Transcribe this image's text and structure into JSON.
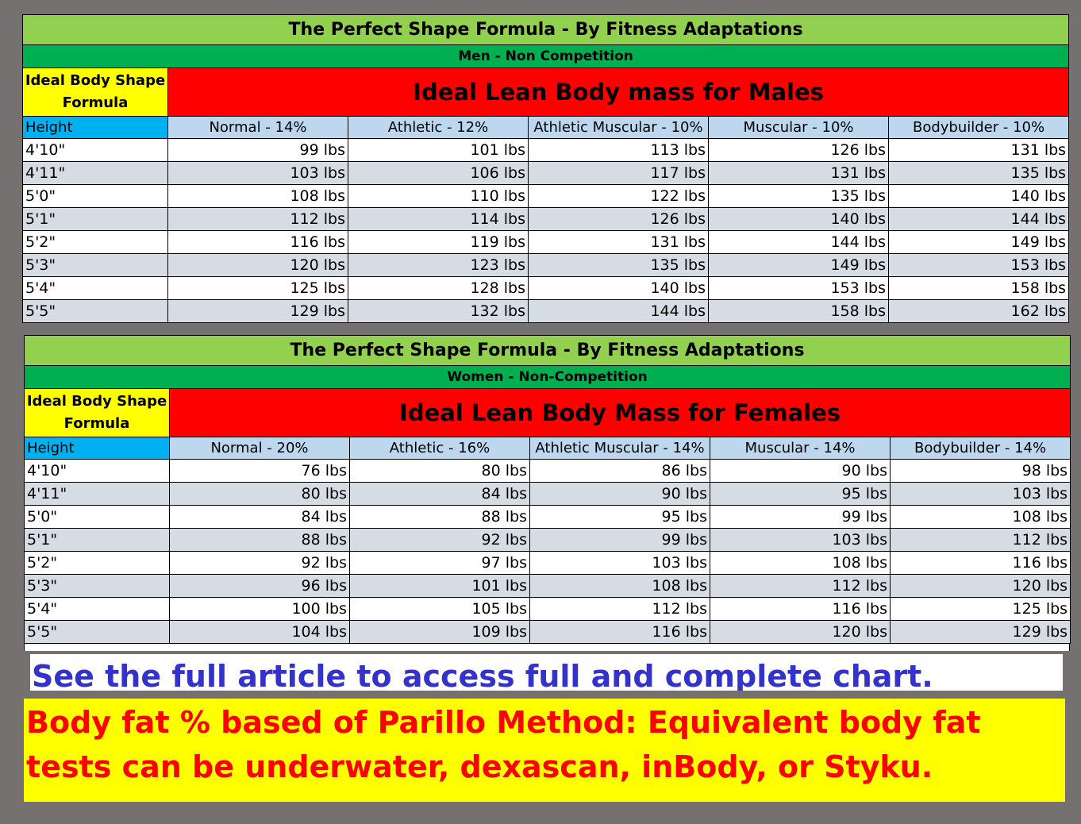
{
  "men": {
    "title": "The Perfect Shape Formula - By Fitness Adaptations",
    "subtitle": "Men - Non Competition",
    "formula_label": "Ideal Body Shape Formula",
    "heading": "Ideal Lean Body mass for Males",
    "columns": [
      "Height",
      "Normal - 14%",
      "Athletic - 12%",
      "Athletic Muscular - 10%",
      "Muscular  - 10%",
      "Bodybuilder - 10%"
    ],
    "rows": [
      [
        "4'10\"",
        "99 lbs",
        "101 lbs",
        "113 lbs",
        "126 lbs",
        "131 lbs"
      ],
      [
        "4'11\"",
        "103 lbs",
        "106 lbs",
        "117 lbs",
        "131 lbs",
        "135 lbs"
      ],
      [
        "5'0\"",
        "108 lbs",
        "110 lbs",
        "122 lbs",
        "135 lbs",
        "140 lbs"
      ],
      [
        "5'1\"",
        "112 lbs",
        "114 lbs",
        "126 lbs",
        "140 lbs",
        "144 lbs"
      ],
      [
        "5'2\"",
        "116 lbs",
        "119 lbs",
        "131 lbs",
        "144 lbs",
        "149 lbs"
      ],
      [
        "5'3\"",
        "120 lbs",
        "123 lbs",
        "135 lbs",
        "149 lbs",
        "153 lbs"
      ],
      [
        "5'4\"",
        "125 lbs",
        "128 lbs",
        "140 lbs",
        "153 lbs",
        "158 lbs"
      ],
      [
        "5'5\"",
        "129 lbs",
        "132 lbs",
        "144 lbs",
        "158 lbs",
        "162 lbs"
      ]
    ]
  },
  "women": {
    "title": "The Perfect Shape Formula - By Fitness Adaptations",
    "subtitle": "Women - Non-Competition",
    "formula_label": "Ideal Body Shape Formula",
    "heading": "Ideal Lean Body Mass for Females",
    "columns": [
      "Height",
      "Normal - 20%",
      "Athletic - 16%",
      "Athletic Muscular - 14%",
      "Muscular  - 14%",
      "Bodybuilder - 14%"
    ],
    "rows": [
      [
        "4'10\"",
        "76 lbs",
        "80 lbs",
        "86 lbs",
        "90 lbs",
        "98 lbs"
      ],
      [
        "4'11\"",
        "80 lbs",
        "84 lbs",
        "90 lbs",
        "95 lbs",
        "103 lbs"
      ],
      [
        "5'0\"",
        "84 lbs",
        "88 lbs",
        "95 lbs",
        "99 lbs",
        "108 lbs"
      ],
      [
        "5'1\"",
        "88 lbs",
        "92 lbs",
        "99 lbs",
        "103 lbs",
        "112 lbs"
      ],
      [
        "5'2\"",
        "92 lbs",
        "97 lbs",
        "103 lbs",
        "108 lbs",
        "116 lbs"
      ],
      [
        "5'3\"",
        "96 lbs",
        "101 lbs",
        "108 lbs",
        "112 lbs",
        "120 lbs"
      ],
      [
        "5'4\"",
        "100 lbs",
        "105 lbs",
        "112 lbs",
        "116 lbs",
        "125 lbs"
      ],
      [
        "5'5\"",
        "104 lbs",
        "109 lbs",
        "116 lbs",
        "120 lbs",
        "129 lbs"
      ]
    ]
  },
  "article_banner": "See the full article to access full and complete chart.",
  "note": {
    "line1": "Body fat % based of Parillo Method: Equivalent body fat",
    "line2": "tests can be underwater, dexascan, inBody, or Styku."
  },
  "colors": {
    "title_bar": "#92d050",
    "subtitle_bar": "#00b050",
    "formula_cell": "#ffff00",
    "heading_cell": "#ff0000",
    "column_header": "#bdd7ee",
    "height_header": "#00b0f0",
    "alt_row": "#d6dce4",
    "article_text": "#3333cc",
    "note_text": "#ff0000",
    "note_background": "#ffff00"
  }
}
